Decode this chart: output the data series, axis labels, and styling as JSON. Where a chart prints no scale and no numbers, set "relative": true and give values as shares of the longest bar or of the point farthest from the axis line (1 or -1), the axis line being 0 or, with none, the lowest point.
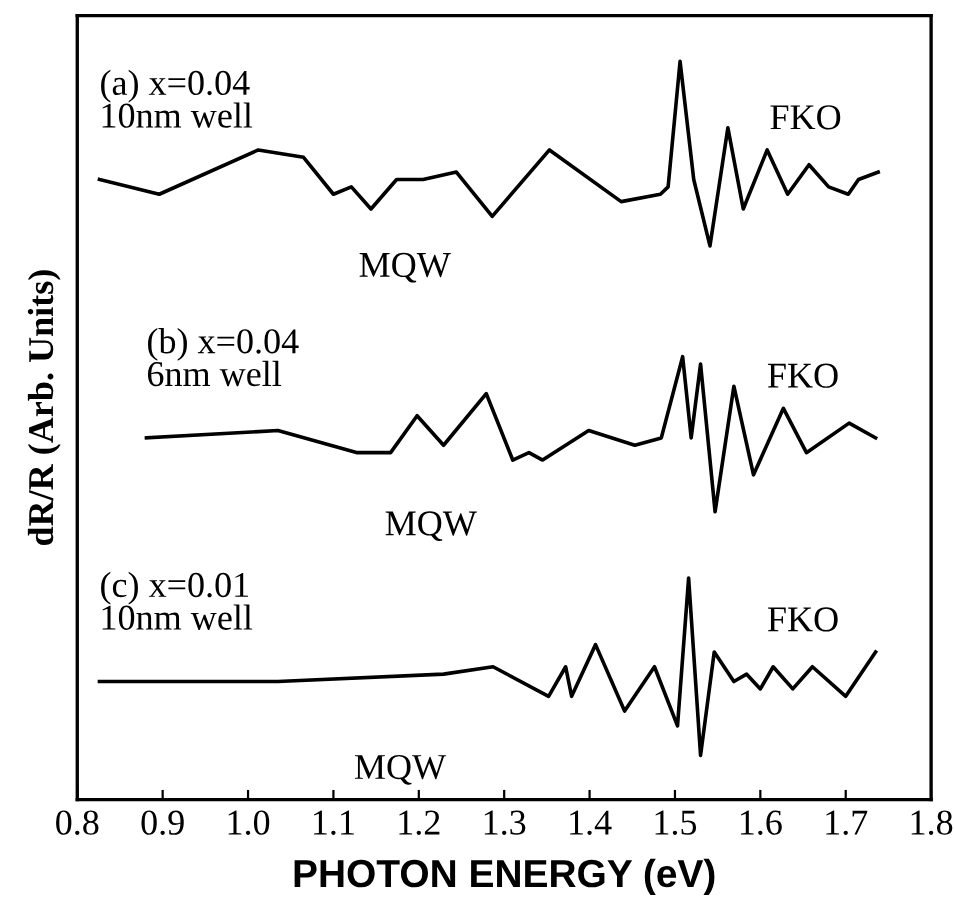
{
  "chart_data": {
    "type": "line",
    "relative": true,
    "xlabel": "PHOTON ENERGY (eV)",
    "ylabel": "dR/R (Arb. Units)",
    "xlim": [
      0.8,
      1.8
    ],
    "xticks": [
      {
        "value": 0.8,
        "label": "0.8"
      },
      {
        "value": 0.9,
        "label": "0.9"
      },
      {
        "value": 1.0,
        "label": "1.0"
      },
      {
        "value": 1.1,
        "label": "1.1"
      },
      {
        "value": 1.2,
        "label": "1.2"
      },
      {
        "value": 1.3,
        "label": "1.3"
      },
      {
        "value": 1.4,
        "label": "1.4"
      },
      {
        "value": 1.5,
        "label": "1.5"
      },
      {
        "value": 1.6,
        "label": "1.6"
      },
      {
        "value": 1.7,
        "label": "1.7"
      },
      {
        "value": 1.8,
        "label": "1.8"
      }
    ],
    "tick_labels": "x",
    "series": [
      {
        "name": "(a) x=0.04\n10nm well",
        "color": "#000000",
        "x": [
          0.826,
          0.896,
          1.012,
          1.065,
          1.1,
          1.121,
          1.144,
          1.174,
          1.205,
          1.244,
          1.286,
          1.353,
          1.437,
          1.483,
          1.492,
          1.506,
          1.522,
          1.541,
          1.562,
          1.58,
          1.608,
          1.632,
          1.657,
          1.68,
          1.703,
          1.715,
          1.738
        ],
        "values": [
          0.84,
          0.82,
          0.88,
          0.87,
          0.82,
          0.83,
          0.8,
          0.84,
          0.84,
          0.85,
          0.79,
          0.88,
          0.81,
          0.82,
          0.83,
          1.0,
          0.84,
          0.75,
          0.91,
          0.8,
          0.88,
          0.82,
          0.86,
          0.83,
          0.82,
          0.84,
          0.85
        ]
      },
      {
        "name": "(b) x=0.04\n6nm well",
        "color": "#000000",
        "x": [
          0.881,
          1.035,
          1.128,
          1.167,
          1.198,
          1.229,
          1.279,
          1.31,
          1.329,
          1.345,
          1.399,
          1.453,
          1.484,
          1.509,
          1.519,
          1.53,
          1.547,
          1.569,
          1.592,
          1.627,
          1.654,
          1.704,
          1.735
        ],
        "values": [
          0.49,
          0.5,
          0.47,
          0.47,
          0.52,
          0.48,
          0.55,
          0.46,
          0.47,
          0.46,
          0.5,
          0.48,
          0.49,
          0.6,
          0.49,
          0.59,
          0.39,
          0.56,
          0.44,
          0.53,
          0.47,
          0.51,
          0.49
        ]
      },
      {
        "name": "(c) x=0.01\n10nm well",
        "color": "#000000",
        "x": [
          0.826,
          1.035,
          1.229,
          1.287,
          1.352,
          1.372,
          1.379,
          1.407,
          1.441,
          1.476,
          1.503,
          1.516,
          1.53,
          1.546,
          1.569,
          1.584,
          1.6,
          1.615,
          1.638,
          1.661,
          1.7,
          1.735
        ],
        "values": [
          0.16,
          0.16,
          0.17,
          0.18,
          0.14,
          0.18,
          0.14,
          0.21,
          0.12,
          0.18,
          0.1,
          0.3,
          0.06,
          0.2,
          0.16,
          0.17,
          0.15,
          0.18,
          0.15,
          0.18,
          0.14,
          0.2
        ]
      }
    ],
    "annotations": [
      "MQW",
      "FKO",
      "MQW",
      "FKO",
      "MQW",
      "FKO"
    ]
  }
}
